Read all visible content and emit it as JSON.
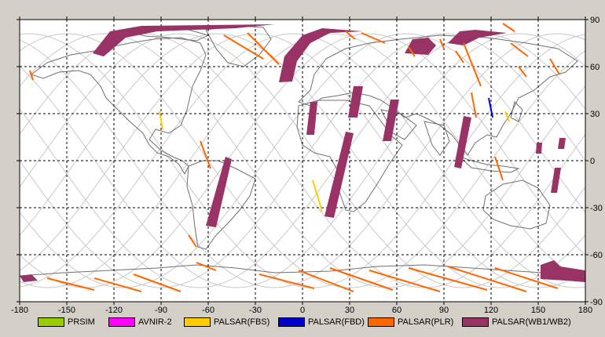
{
  "map": {
    "lon_ticks": [
      "-180",
      "-150",
      "-120",
      "-90",
      "-60",
      "-30",
      "0",
      "30",
      "60",
      "90",
      "120",
      "150",
      "180"
    ],
    "lat_ticks": [
      "90",
      "60",
      "30",
      "0",
      "-30",
      "-60",
      "-90"
    ],
    "lon_values": [
      -180,
      -150,
      -120,
      -90,
      -60,
      -30,
      0,
      30,
      60,
      90,
      120,
      150,
      180
    ],
    "lat_values": [
      90,
      60,
      30,
      0,
      -30,
      -60,
      -90
    ],
    "xlim": [
      -180,
      180
    ],
    "ylim": [
      -90,
      90
    ],
    "grid": "dashed"
  },
  "legend": {
    "items": [
      {
        "label": "PRSIM",
        "color": "#99cc00"
      },
      {
        "label": "AVNIR-2",
        "color": "#ff00ff"
      },
      {
        "label": "PALSAR(FBS)",
        "color": "#ffcc00"
      },
      {
        "label": "PALSAR(FBD)",
        "color": "#0000cc"
      },
      {
        "label": "PALSAR(PLR)",
        "color": "#ff6600"
      },
      {
        "label": "PALSAR(WB1/WB2)",
        "color": "#993366"
      }
    ]
  },
  "colors": {
    "coast": "#707070",
    "orbit": "#c8c8c8",
    "wb": "#993366",
    "plr": "#ff6600",
    "fbs": "#ffcc00",
    "fbd": "#0000cc",
    "grid": "#000000",
    "map_bg": "#ffffff"
  }
}
